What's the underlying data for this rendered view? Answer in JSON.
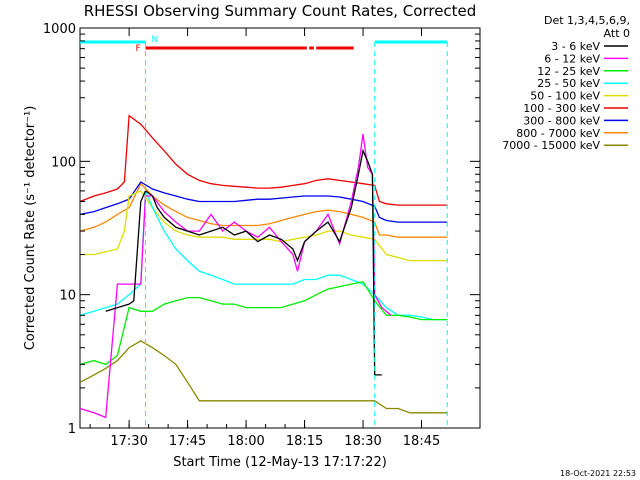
{
  "chart_data": {
    "type": "line",
    "title": "RHESSI Observing Summary Count Rates, Corrected",
    "xlabel": "Start Time (12-May-13 17:17:22)",
    "ylabel": "Corrected Count Rate (s⁻¹ detector⁻¹)",
    "y_scale": "log",
    "ylim": [
      1,
      1000
    ],
    "x_range_min": [
      17.29,
      19.0
    ],
    "x_ticks": [
      "17:30",
      "17:45",
      "18:00",
      "18:15",
      "18:30",
      "18:45"
    ],
    "x_tick_min": [
      17.5,
      17.75,
      18.0,
      18.25,
      18.5,
      18.75
    ],
    "y_ticks": [
      "1",
      "10",
      "100",
      "1000"
    ],
    "y_tick_values": [
      1,
      10,
      100,
      1000
    ],
    "grid": false,
    "legend_placement": "outside-right",
    "legend_header": [
      "Det 1,3,4,5,6,9,",
      "Att 0"
    ],
    "timestamp": "18-Oct-2021 22:53",
    "flags": {
      "night_label": "N",
      "flare_label": "F",
      "night_color": "#00ffff",
      "flare_color": "#ee0000",
      "night_segments": [
        [
          17.29,
          17.57
        ],
        [
          18.55,
          18.86
        ]
      ],
      "flare_segments": [
        [
          17.57,
          18.26
        ],
        [
          18.27,
          18.29
        ],
        [
          18.3,
          18.46
        ]
      ],
      "night_boundaries": [
        17.57,
        18.55,
        18.86
      ]
    },
    "series": [
      {
        "name": "3 - 6 keV",
        "color": "#000000",
        "x": [
          17.4,
          17.45,
          17.5,
          17.52,
          17.55,
          17.57,
          17.6,
          17.62,
          17.65,
          17.7,
          17.75,
          17.8,
          17.85,
          17.9,
          17.95,
          18.0,
          18.05,
          18.1,
          18.15,
          18.2,
          18.22,
          18.25,
          18.3,
          18.35,
          18.4,
          18.45,
          18.48,
          18.5,
          18.52,
          18.54,
          18.55,
          18.58
        ],
        "y": [
          7.5,
          8,
          8.5,
          9,
          50,
          60,
          55,
          45,
          38,
          32,
          30,
          28,
          30,
          32,
          28,
          30,
          25,
          28,
          26,
          22,
          18,
          25,
          30,
          35,
          25,
          45,
          80,
          120,
          100,
          80,
          2.5,
          2.5
        ]
      },
      {
        "name": "6 - 12 keV",
        "color": "#ff00ff",
        "x": [
          17.29,
          17.35,
          17.4,
          17.45,
          17.5,
          17.55,
          17.57,
          17.6,
          17.65,
          17.7,
          17.75,
          17.8,
          17.85,
          17.9,
          17.95,
          18.0,
          18.05,
          18.1,
          18.15,
          18.2,
          18.22,
          18.25,
          18.3,
          18.35,
          18.4,
          18.45,
          18.48,
          18.5,
          18.52,
          18.54,
          18.55,
          18.58,
          18.62
        ],
        "y": [
          1.4,
          1.3,
          1.2,
          12,
          12,
          12,
          55,
          55,
          42,
          35,
          30,
          30,
          40,
          30,
          35,
          30,
          27,
          32,
          25,
          20,
          15,
          25,
          30,
          40,
          24,
          50,
          90,
          160,
          90,
          80,
          10,
          8,
          7
        ]
      },
      {
        "name": "12 - 25 keV",
        "color": "#00ee00",
        "x": [
          17.29,
          17.35,
          17.4,
          17.45,
          17.5,
          17.55,
          17.6,
          17.65,
          17.7,
          17.75,
          17.8,
          17.85,
          17.9,
          17.95,
          18.0,
          18.05,
          18.1,
          18.15,
          18.2,
          18.25,
          18.3,
          18.35,
          18.4,
          18.45,
          18.5,
          18.55,
          18.6,
          18.65,
          18.7,
          18.75,
          18.8,
          18.86
        ],
        "y": [
          3,
          3.2,
          3,
          3.5,
          8,
          7.5,
          7.5,
          8.5,
          9,
          9.5,
          9.5,
          9,
          8.5,
          8.5,
          8,
          8,
          8,
          8,
          8.5,
          9,
          10,
          11,
          11.5,
          12,
          12.5,
          9,
          7,
          7,
          6.8,
          6.5,
          6.5,
          6.5
        ]
      },
      {
        "name": "25 - 50 keV",
        "color": "#00ffff",
        "x": [
          17.29,
          17.35,
          17.4,
          17.45,
          17.5,
          17.55,
          17.57,
          17.6,
          17.65,
          17.7,
          17.75,
          17.8,
          17.85,
          17.9,
          17.95,
          18.0,
          18.05,
          18.1,
          18.15,
          18.2,
          18.25,
          18.3,
          18.35,
          18.4,
          18.45,
          18.5,
          18.55,
          18.6,
          18.65,
          18.7,
          18.75,
          18.8,
          18.86
        ],
        "y": [
          7,
          7.5,
          8,
          8.5,
          10,
          12,
          60,
          45,
          30,
          22,
          18,
          15,
          14,
          13,
          12,
          12,
          12,
          12,
          12,
          12,
          13,
          13,
          14,
          14,
          13,
          12,
          10,
          8,
          7,
          7,
          6.8,
          6.5,
          6.5
        ]
      },
      {
        "name": "50 - 100 keV",
        "color": "#dddd00",
        "x": [
          17.29,
          17.35,
          17.4,
          17.45,
          17.48,
          17.5,
          17.55,
          17.6,
          17.65,
          17.7,
          17.75,
          17.8,
          17.85,
          17.9,
          17.95,
          18.0,
          18.05,
          18.1,
          18.15,
          18.2,
          18.25,
          18.3,
          18.35,
          18.4,
          18.45,
          18.5,
          18.55,
          18.6,
          18.65,
          18.7,
          18.75,
          18.8,
          18.86
        ],
        "y": [
          20,
          20,
          21,
          22,
          30,
          55,
          60,
          45,
          35,
          30,
          28,
          27,
          27,
          27,
          26,
          26,
          26,
          26,
          25,
          26,
          27,
          28,
          30,
          30,
          28,
          27,
          26,
          20,
          19,
          18,
          18,
          18,
          18
        ]
      },
      {
        "name": "100 - 300 keV",
        "color": "#ee0000",
        "x": [
          17.29,
          17.35,
          17.4,
          17.45,
          17.48,
          17.5,
          17.55,
          17.6,
          17.65,
          17.7,
          17.75,
          17.8,
          17.85,
          17.9,
          17.95,
          18.0,
          18.05,
          18.1,
          18.15,
          18.2,
          18.25,
          18.3,
          18.35,
          18.4,
          18.45,
          18.5,
          18.55,
          18.57,
          18.6,
          18.65,
          18.7,
          18.75,
          18.8,
          18.86
        ],
        "y": [
          50,
          55,
          58,
          62,
          70,
          220,
          190,
          150,
          120,
          95,
          80,
          72,
          68,
          66,
          65,
          64,
          63,
          63,
          64,
          66,
          68,
          72,
          74,
          72,
          70,
          68,
          66,
          50,
          48,
          47,
          47,
          47,
          47,
          47
        ]
      },
      {
        "name": "300 - 800 keV",
        "color": "#0000ee",
        "x": [
          17.29,
          17.35,
          17.4,
          17.45,
          17.5,
          17.55,
          17.6,
          17.65,
          17.7,
          17.75,
          17.8,
          17.85,
          17.9,
          17.95,
          18.0,
          18.05,
          18.1,
          18.15,
          18.2,
          18.25,
          18.3,
          18.35,
          18.4,
          18.45,
          18.5,
          18.55,
          18.57,
          18.6,
          18.65,
          18.7,
          18.75,
          18.8,
          18.86
        ],
        "y": [
          40,
          42,
          45,
          48,
          52,
          70,
          62,
          58,
          55,
          52,
          50,
          50,
          50,
          50,
          51,
          52,
          52,
          53,
          54,
          55,
          55,
          55,
          54,
          52,
          50,
          46,
          38,
          36,
          35,
          35,
          35,
          35,
          35
        ]
      },
      {
        "name": "800 - 7000 keV",
        "color": "#ff8800",
        "x": [
          17.29,
          17.35,
          17.4,
          17.45,
          17.5,
          17.55,
          17.6,
          17.65,
          17.7,
          17.75,
          17.8,
          17.85,
          17.9,
          17.95,
          18.0,
          18.05,
          18.1,
          18.15,
          18.2,
          18.25,
          18.3,
          18.35,
          18.4,
          18.45,
          18.5,
          18.55,
          18.57,
          18.6,
          18.65,
          18.7,
          18.75,
          18.8,
          18.86
        ],
        "y": [
          30,
          32,
          35,
          40,
          45,
          68,
          55,
          47,
          42,
          38,
          36,
          34,
          33,
          33,
          33,
          33,
          34,
          36,
          38,
          40,
          42,
          43,
          42,
          40,
          38,
          35,
          28,
          28,
          27,
          27,
          27,
          27,
          27
        ]
      },
      {
        "name": "7000 - 15000 keV",
        "color": "#888800",
        "x": [
          17.29,
          17.35,
          17.4,
          17.45,
          17.5,
          17.55,
          17.6,
          17.65,
          17.7,
          17.75,
          17.8,
          17.85,
          17.9,
          17.95,
          18.0,
          18.05,
          18.1,
          18.15,
          18.2,
          18.25,
          18.3,
          18.35,
          18.4,
          18.45,
          18.5,
          18.55,
          18.6,
          18.65,
          18.7,
          18.75,
          18.8,
          18.86
        ],
        "y": [
          2.2,
          2.5,
          2.8,
          3.2,
          4,
          4.5,
          4,
          3.5,
          3,
          2.2,
          1.6,
          1.6,
          1.6,
          1.6,
          1.6,
          1.6,
          1.6,
          1.6,
          1.6,
          1.6,
          1.6,
          1.6,
          1.6,
          1.6,
          1.6,
          1.6,
          1.4,
          1.4,
          1.3,
          1.3,
          1.3,
          1.3
        ]
      }
    ]
  }
}
